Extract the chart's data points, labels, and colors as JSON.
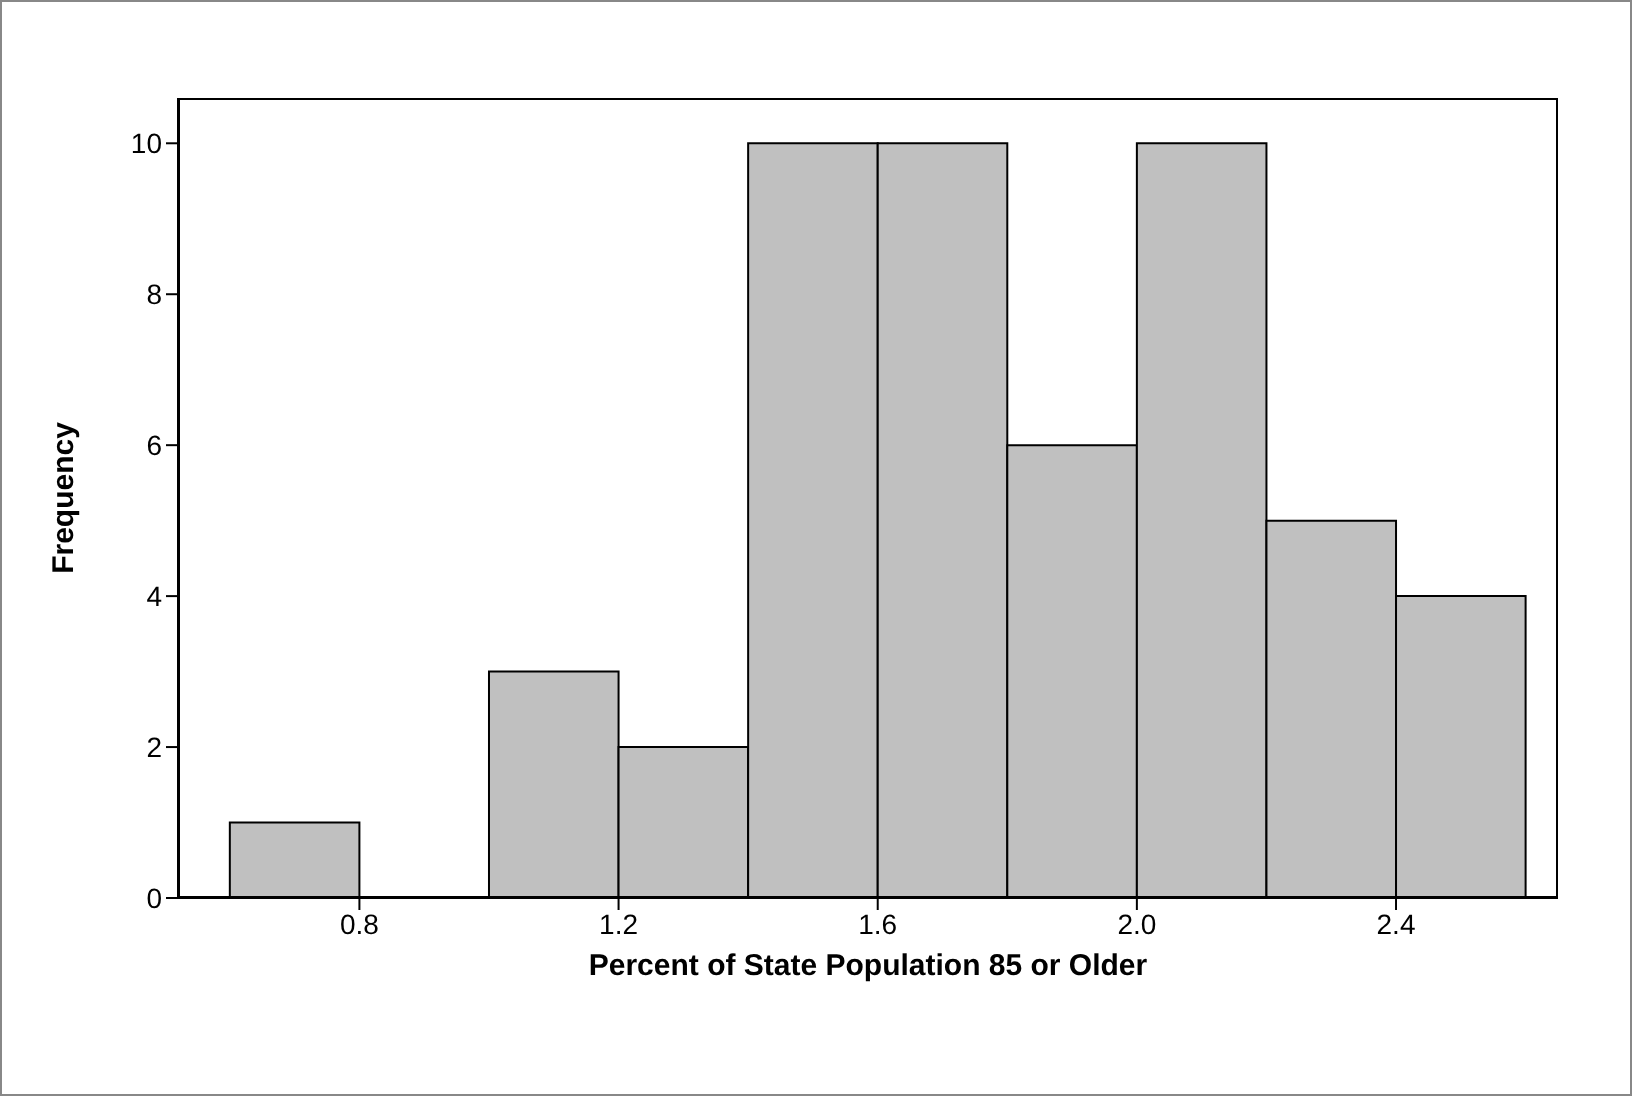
{
  "chart_data": {
    "type": "histogram",
    "xlabel": "Percent of State Population 85 or Older",
    "ylabel": "Frequency",
    "bins": [
      0.6,
      0.8,
      1.0,
      1.2,
      1.4,
      1.6,
      1.8,
      2.0,
      2.2,
      2.4,
      2.6
    ],
    "values": [
      1,
      0,
      3,
      2,
      10,
      10,
      6,
      10,
      5,
      4
    ],
    "color": "#c0c0c0",
    "xlim": [
      0.52,
      2.65
    ],
    "xticks": [
      {
        "value": 0.8,
        "label": "0.8"
      },
      {
        "value": 1.2,
        "label": "1.2"
      },
      {
        "value": 1.6,
        "label": "1.6"
      },
      {
        "value": 2.0,
        "label": "2.0"
      },
      {
        "value": 2.4,
        "label": "2.4"
      }
    ],
    "ylim": [
      0,
      10.6
    ],
    "yticks": [
      0,
      2,
      4,
      6,
      8,
      10
    ]
  }
}
